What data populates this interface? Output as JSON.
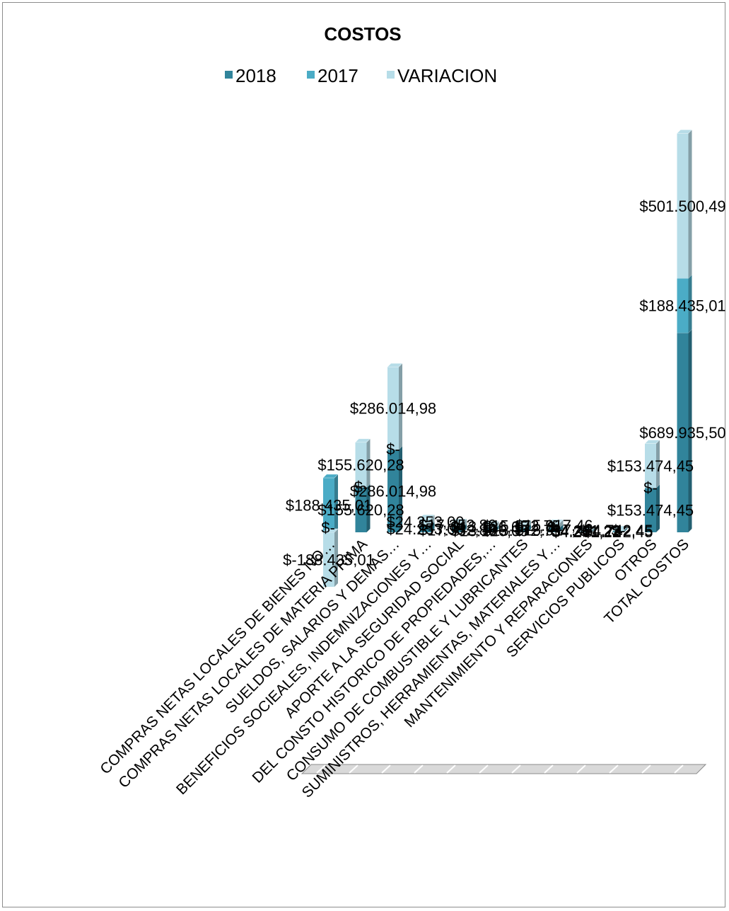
{
  "chart_data": {
    "type": "bar",
    "stacked": true,
    "three_d": true,
    "title": "COSTOS",
    "legend": {
      "position": "top",
      "entries": [
        {
          "name": "2018",
          "color": "#31849b"
        },
        {
          "name": "2017",
          "color": "#4bacc6"
        },
        {
          "name": "VARIACION",
          "color": "#b7dde8"
        }
      ]
    },
    "categories": [
      "COMPRAS NETAS LOCALES DE BIENES NO…",
      "COMPRAS NETAS LOCALES DE MATERIA PRIMA",
      "SUELDOS, SALARIOS Y DEMAS…",
      "BENEFICIOS SOCIEALES, INDEMNIZACIONES Y…",
      "APORTE A LA SEGURIDAD SOCIAL",
      "DEL CONSTO HISTORICO DE PROPIEDADES,…",
      "CONSUMO DE COMBUSTIBLE Y LUBRICANTES",
      "SUMINISTROS, HERRAMIENTAS, MATERIALES Y…",
      "MANTENIMIENTO Y REPARACIONES",
      "SERVICIOS PUBLICOS",
      "OTROS",
      "TOTAL COSTOS"
    ],
    "series": [
      {
        "name": "2018",
        "values": [
          0,
          155620.28,
          286014.98,
          24253.0,
          17352.86,
          13126.05,
          15172.75,
          15917.46,
          4261.22,
          4742.45,
          153474.45,
          689935.5
        ],
        "labels": [
          "$-",
          "$155.620,28",
          "$286.014,98",
          "$24.253,00",
          "$17.352,86",
          "$13.126,05",
          "$15.172,75",
          "$15.917,46",
          "$4.261,22",
          "$4.742,45",
          "$153.474,45",
          "$689.935,50"
        ]
      },
      {
        "name": "2017",
        "values": [
          188435.01,
          0,
          0,
          0,
          0,
          0,
          0,
          0,
          0,
          0,
          0,
          188435.01
        ],
        "labels": [
          "$188.435,01",
          "$-",
          "$-",
          "$-",
          "$-",
          "$-",
          "$-",
          "$-",
          "$-",
          "$-",
          "$-",
          "$188.435,01"
        ]
      },
      {
        "name": "VARIACION",
        "values": [
          -188435.01,
          155620.28,
          286014.98,
          24253.0,
          17352.86,
          13126.05,
          15172.75,
          15917.46,
          4261.22,
          4742.45,
          153474.45,
          501500.49
        ],
        "labels": [
          "$-188.435,01",
          "$155.620,28",
          "$286.014,98",
          "$24.253,00",
          "$17.352,86",
          "$13.126,05",
          "$15.172,75",
          "$15.917,46",
          "$4.261,22",
          "$4.742,45",
          "$153.474,45",
          "$501.500,49"
        ]
      }
    ],
    "grid": false
  }
}
